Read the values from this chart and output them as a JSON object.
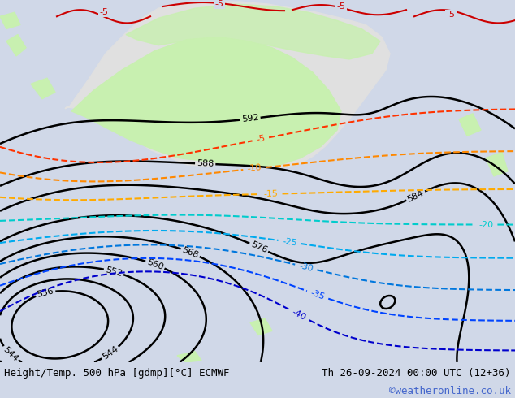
{
  "title_left": "Height/Temp. 500 hPa [gdmp][°C] ECMWF",
  "title_right": "Th 26-09-2024 00:00 UTC (12+36)",
  "watermark": "©weatheronline.co.uk",
  "bg_color": "#d0d8e8",
  "green_area_color": "#c8f0b0",
  "fig_width": 6.34,
  "fig_height": 4.9,
  "dpi": 100,
  "bottom_text_color": "#000000",
  "watermark_color": "#4466cc"
}
